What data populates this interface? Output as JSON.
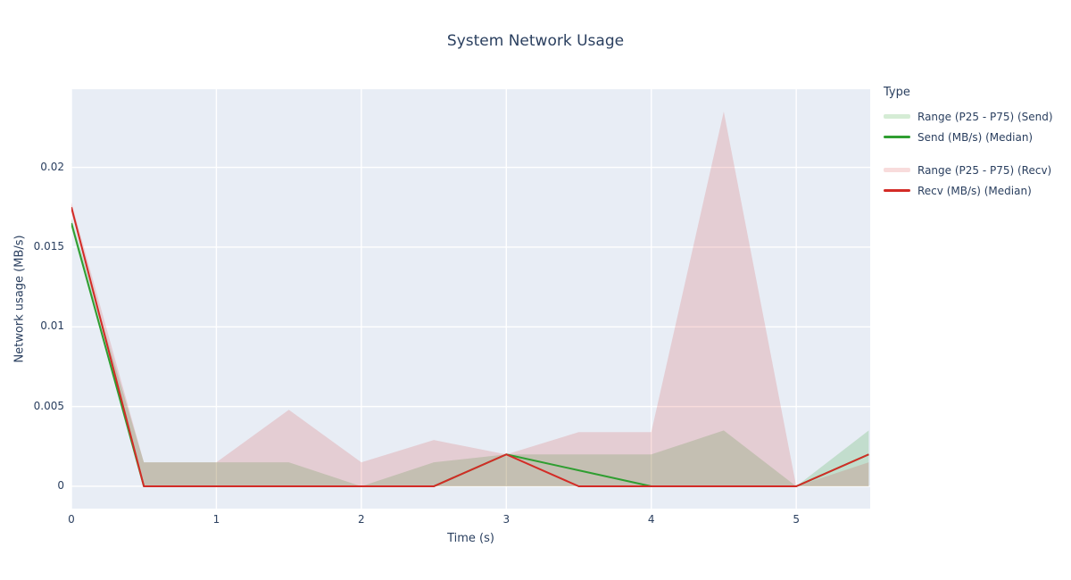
{
  "chart": {
    "title": "System Network Usage",
    "xlabel": "Time (s)",
    "ylabel": "Network usage (MB/s)"
  },
  "legend": {
    "title": "Type",
    "items": [
      {
        "label": "Range (P25 - P75) (Send)",
        "swatch": "band",
        "color_key": "send_band",
        "gap_before": false
      },
      {
        "label": "Send (MB/s) (Median)",
        "swatch": "line",
        "color_key": "send_line",
        "gap_before": false
      },
      {
        "label": "Range (P25 - P75) (Recv)",
        "swatch": "band",
        "color_key": "recv_band",
        "gap_before": true
      },
      {
        "label": "Recv (MB/s) (Median)",
        "swatch": "line",
        "color_key": "recv_line",
        "gap_before": false
      }
    ]
  },
  "colors": {
    "send_line": "#2f9e31",
    "recv_line": "#d32b26",
    "send_band": "rgba(44,160,44,0.20)",
    "recv_band": "rgba(214,39,40,0.16)",
    "plot_bg": "#e8edf5",
    "grid": "#ffffff",
    "text": "#2a3f5f"
  },
  "chart_data": {
    "type": "area",
    "title": "System Network Usage",
    "xlabel": "Time (s)",
    "ylabel": "Network usage (MB/s)",
    "grid": true,
    "legend_position": "right",
    "xlim": [
      0,
      5.51
    ],
    "ylim": [
      -0.0014,
      0.0249
    ],
    "xticks": {
      "values": [
        0,
        1,
        2,
        3,
        4,
        5
      ],
      "labels": [
        "0",
        "1",
        "2",
        "3",
        "4",
        "5"
      ]
    },
    "yticks": {
      "values": [
        0,
        0.005,
        0.01,
        0.015,
        0.02
      ],
      "labels": [
        "0",
        "0.005",
        "0.01",
        "0.015",
        "0.02"
      ]
    },
    "x": [
      0,
      0.5,
      1,
      1.5,
      2,
      2.5,
      3,
      3.5,
      4,
      4.5,
      5,
      5.5
    ],
    "series": [
      {
        "name": "Range (P25 - P75) (Send)",
        "kind": "band",
        "color_key": "send_band",
        "p25": [
          0.0162,
          0,
          0,
          0,
          0,
          0,
          0,
          0,
          0,
          0,
          0,
          0
        ],
        "p75": [
          0.0168,
          0.0015,
          0.0015,
          0.0015,
          0,
          0.0015,
          0.002,
          0.002,
          0.002,
          0.0035,
          0,
          0.0035
        ]
      },
      {
        "name": "Send (MB/s) (Median)",
        "kind": "line",
        "color_key": "send_line",
        "values": [
          0.0165,
          0,
          0,
          0,
          0,
          0,
          0.002,
          0.001,
          0,
          0,
          0,
          0.002
        ]
      },
      {
        "name": "Range (P25 - P75) (Recv)",
        "kind": "band",
        "color_key": "recv_band",
        "p25": [
          0.0172,
          0,
          0,
          0,
          0,
          0,
          0,
          0,
          0,
          0,
          0,
          0
        ],
        "p75": [
          0.0178,
          0.0015,
          0.0015,
          0.0048,
          0.0015,
          0.0029,
          0.002,
          0.0034,
          0.0034,
          0.0235,
          0,
          0.0015
        ]
      },
      {
        "name": "Recv (MB/s) (Median)",
        "kind": "line",
        "color_key": "recv_line",
        "values": [
          0.0175,
          0,
          0,
          0,
          0,
          0,
          0.002,
          0,
          0,
          0,
          0,
          0.002
        ]
      }
    ]
  }
}
